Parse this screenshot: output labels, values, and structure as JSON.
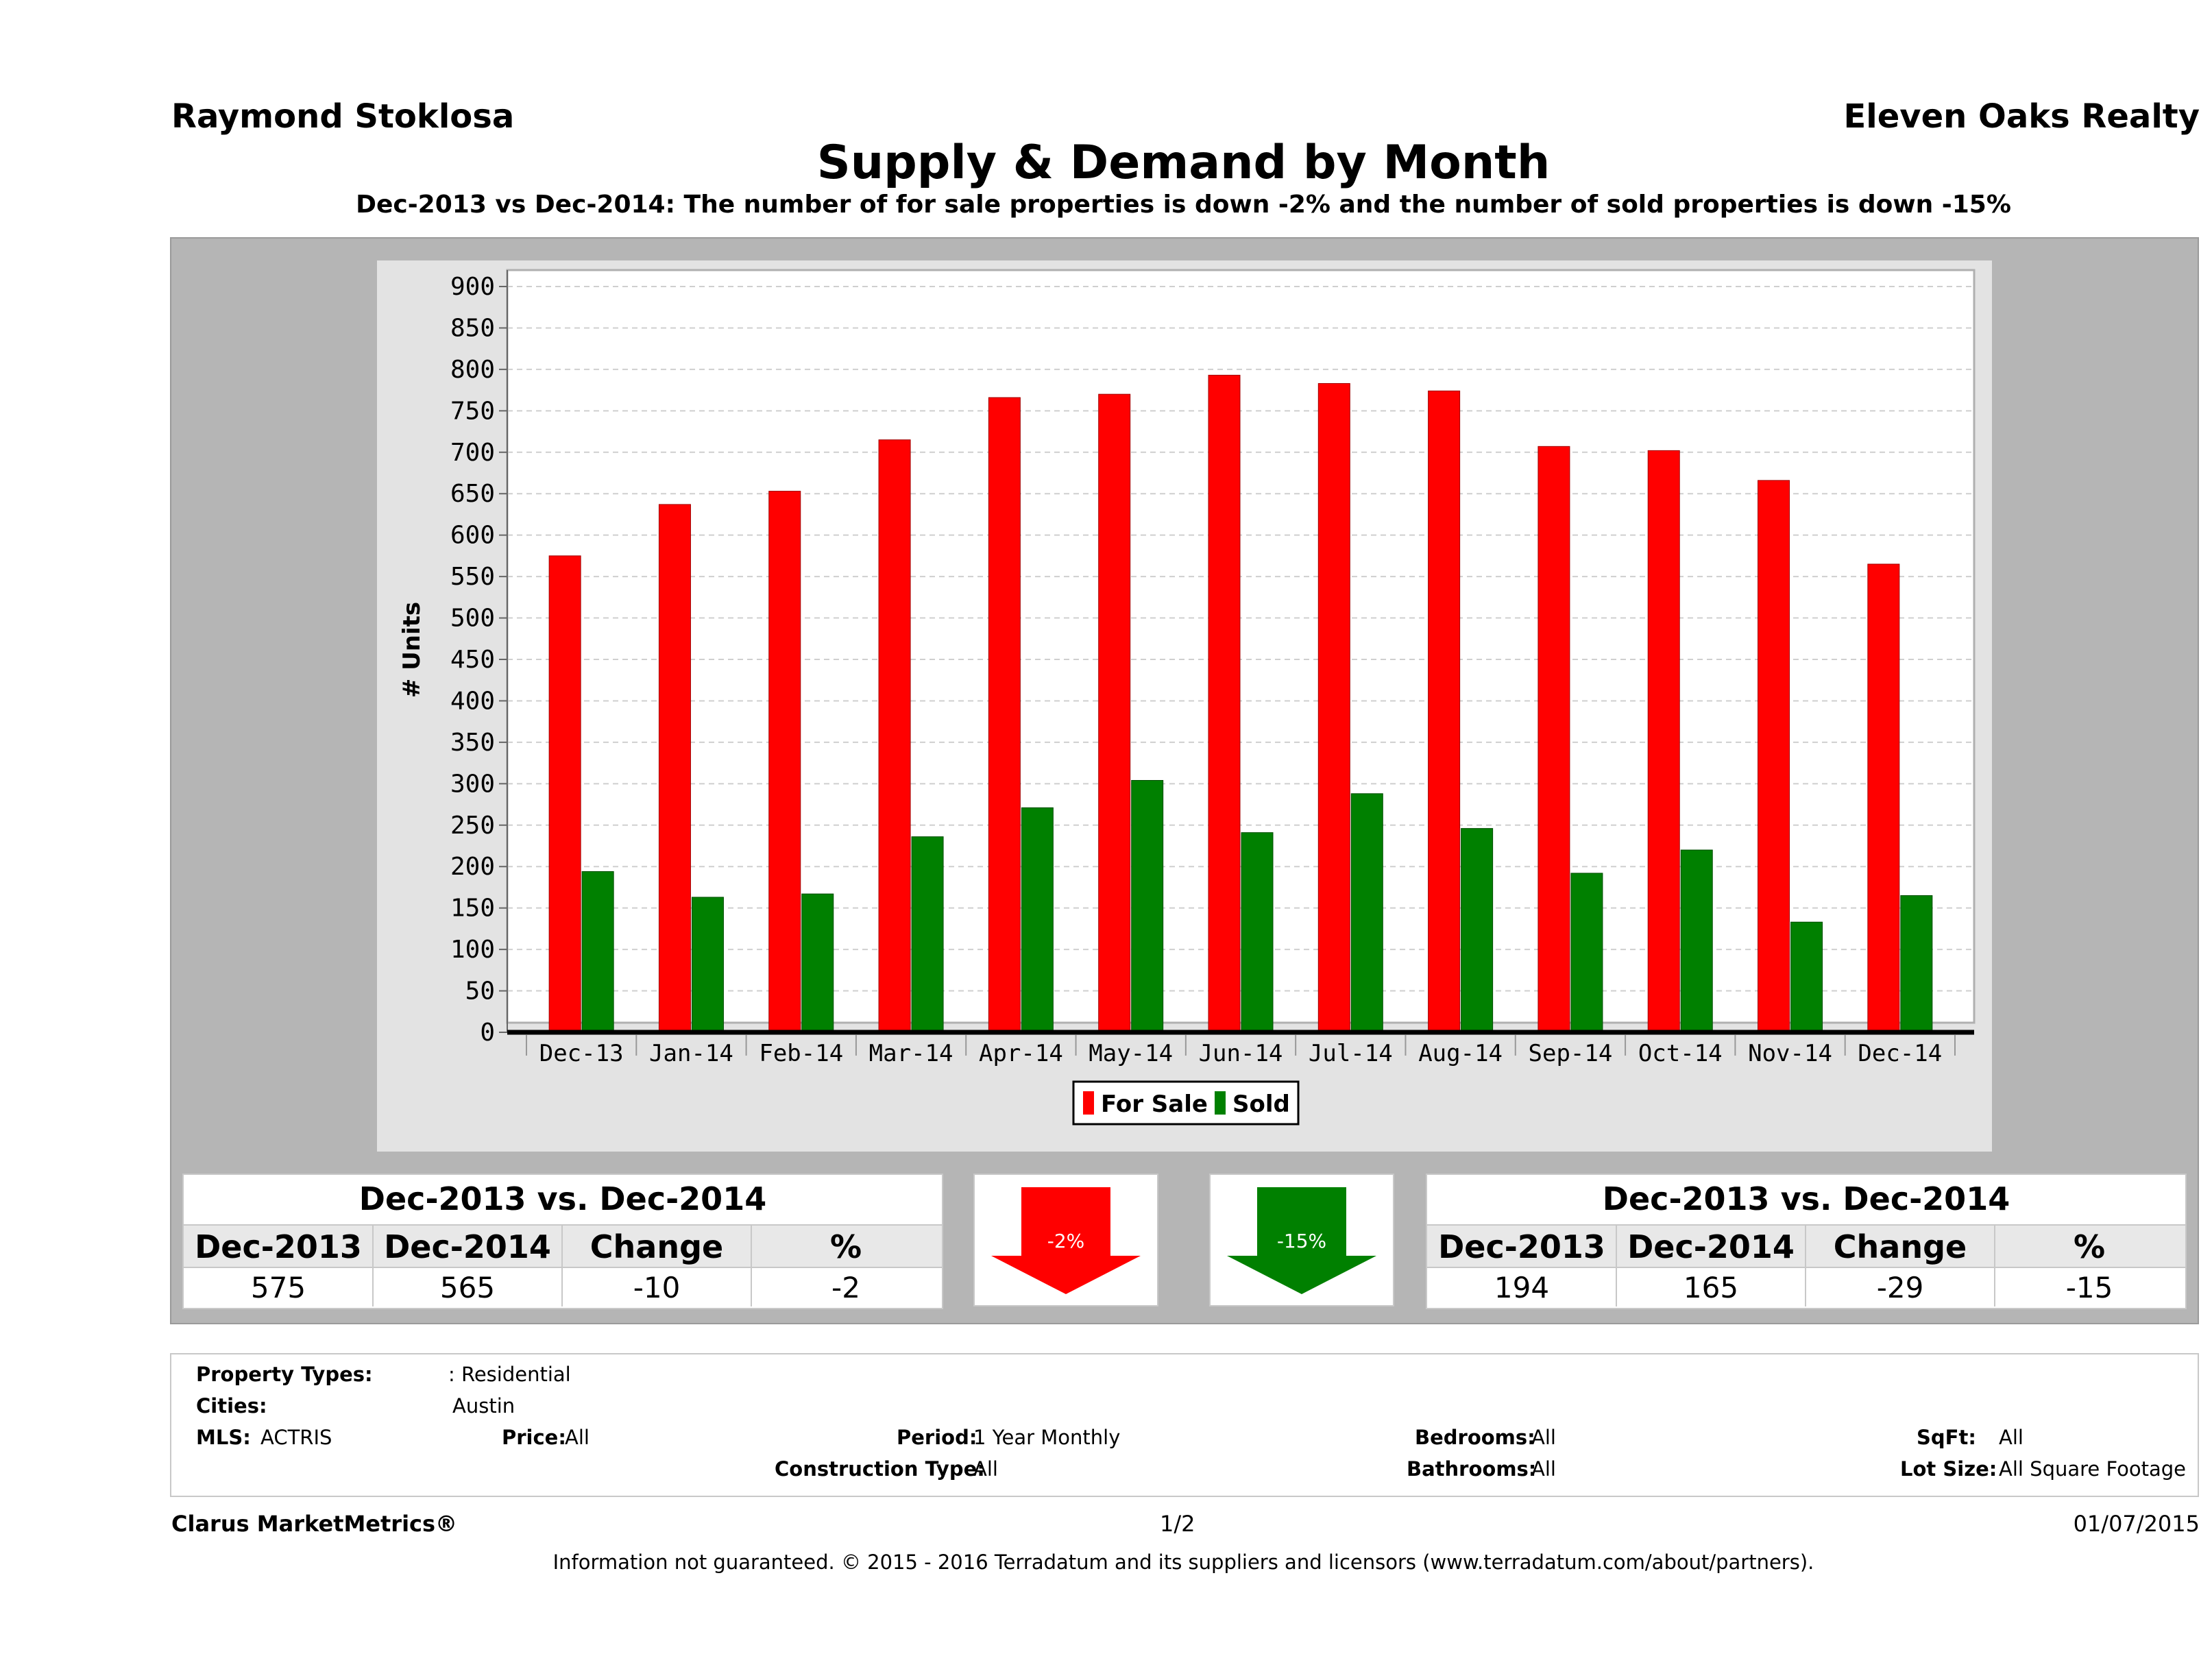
{
  "header": {
    "agent": "Raymond Stoklosa",
    "company": "Eleven Oaks Realty",
    "title": "Supply & Demand by Month",
    "subtitle": "Dec-2013 vs Dec-2014: The number of for sale properties is down -2% and the number of sold properties is down -15%"
  },
  "chart_data": {
    "type": "bar",
    "categories": [
      "Dec-13",
      "Jan-14",
      "Feb-14",
      "Mar-14",
      "Apr-14",
      "May-14",
      "Jun-14",
      "Jul-14",
      "Aug-14",
      "Sep-14",
      "Oct-14",
      "Nov-14",
      "Dec-14"
    ],
    "series": [
      {
        "name": "For Sale",
        "color": "#ff0000",
        "values": [
          575,
          637,
          653,
          715,
          766,
          770,
          793,
          783,
          774,
          707,
          702,
          666,
          565
        ]
      },
      {
        "name": "Sold",
        "color": "#008000",
        "values": [
          194,
          163,
          167,
          236,
          271,
          304,
          241,
          288,
          246,
          192,
          220,
          133,
          165
        ]
      }
    ],
    "ylabel": "# Units",
    "xlabel": "",
    "ylim": [
      0,
      900
    ],
    "yticks": [
      0,
      50,
      100,
      150,
      200,
      250,
      300,
      350,
      400,
      450,
      500,
      550,
      600,
      650,
      700,
      750,
      800,
      850,
      900
    ],
    "grid": true,
    "legend": "bottom-center"
  },
  "for_sale_table": {
    "heading": "Dec-2013 vs. Dec-2014",
    "columns": [
      "Dec-2013",
      "Dec-2014",
      "Change",
      "%"
    ],
    "values": [
      "575",
      "565",
      "-10",
      "-2"
    ],
    "arrow_label": "-2%",
    "arrow_color": "#ff0000"
  },
  "sold_table": {
    "heading": "Dec-2013 vs. Dec-2014",
    "columns": [
      "Dec-2013",
      "Dec-2014",
      "Change",
      "%"
    ],
    "values": [
      "194",
      "165",
      "-29",
      "-15"
    ],
    "arrow_label": "-15%",
    "arrow_color": "#008000"
  },
  "criteria": {
    "property_types_label": "Property Types:",
    "property_types_value": ": Residential",
    "cities_label": "Cities:",
    "cities_value": "Austin",
    "mls_label": "MLS:",
    "mls_value": "ACTRIS",
    "price_label": "Price:",
    "price_value": "All",
    "period_label": "Period:",
    "period_value": "1 Year Monthly",
    "construction_label": "Construction Type:",
    "construction_value": "All",
    "bedrooms_label": "Bedrooms:",
    "bedrooms_value": "All",
    "bathrooms_label": "Bathrooms:",
    "bathrooms_value": "All",
    "sqft_label": "SqFt:",
    "sqft_value": "All",
    "lotsize_label": "Lot Size:",
    "lotsize_value": "All Square Footage"
  },
  "footer": {
    "brand": "Clarus MarketMetrics®",
    "page": "1/2",
    "date": "01/07/2015",
    "disclaimer": "Information not guaranteed. © 2015 - 2016 Terradatum and its suppliers and licensors (www.terradatum.com/about/partners)."
  }
}
